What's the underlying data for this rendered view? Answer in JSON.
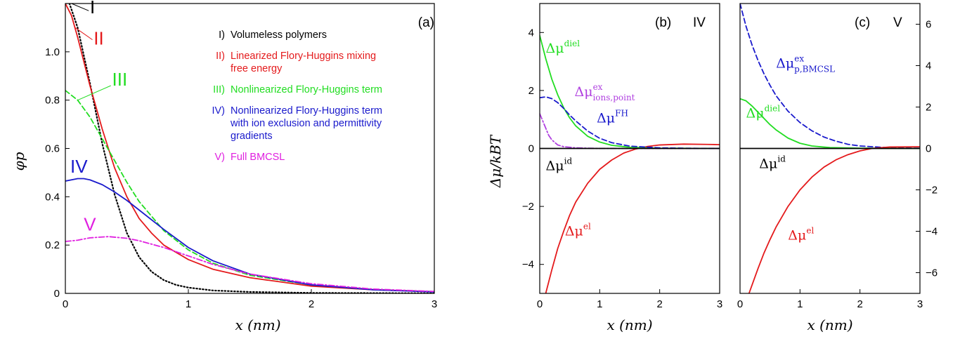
{
  "chart_data": [
    {
      "id": "a",
      "type": "line",
      "panel_label": "(a)",
      "xlabel": "x (nm)",
      "ylabel": "φp",
      "xlim": [
        0,
        3
      ],
      "ylim": [
        0,
        1.2
      ],
      "xticks": [
        "0",
        "1",
        "2",
        "3"
      ],
      "yticks": [
        "0",
        "0.2",
        "0.4",
        "0.6",
        "0.8",
        "1.0"
      ],
      "legend_placement": "top-right",
      "legend": [
        {
          "key": "I)",
          "text": [
            "Volumeless polymers"
          ],
          "color": "#000000"
        },
        {
          "key": "II)",
          "text": [
            "Linearized Flory-Huggins mixing",
            "free energy"
          ],
          "color": "#e41a1c"
        },
        {
          "key": "III)",
          "text": [
            "Nonlinearized Flory-Huggins term"
          ],
          "color": "#22dd22"
        },
        {
          "key": "IV)",
          "text": [
            "Nonlinearized Flory-Huggins term",
            "with ion exclusion and permittivity",
            "gradients"
          ],
          "color": "#1a1acc"
        },
        {
          "key": "V)",
          "text": [
            "Full BMCSL"
          ],
          "color": "#e020e0"
        }
      ],
      "series": [
        {
          "name": "I",
          "color": "#000000",
          "style": "dotted",
          "x": [
            0,
            0.1,
            0.2,
            0.3,
            0.4,
            0.5,
            0.6,
            0.7,
            0.8,
            0.9,
            1.0,
            1.2,
            1.5,
            2.0,
            3.0
          ],
          "y": [
            1.25,
            1.1,
            0.87,
            0.62,
            0.41,
            0.25,
            0.15,
            0.09,
            0.055,
            0.035,
            0.024,
            0.012,
            0.006,
            0.002,
            0.0005
          ]
        },
        {
          "name": "II",
          "color": "#e41a1c",
          "style": "solid",
          "x": [
            0,
            0.05,
            0.1,
            0.2,
            0.3,
            0.4,
            0.5,
            0.6,
            0.7,
            0.8,
            1.0,
            1.2,
            1.5,
            2.0,
            2.5,
            3.0
          ],
          "y": [
            1.2,
            1.15,
            1.06,
            0.86,
            0.68,
            0.52,
            0.4,
            0.31,
            0.25,
            0.2,
            0.14,
            0.1,
            0.065,
            0.03,
            0.015,
            0.007
          ]
        },
        {
          "name": "III",
          "color": "#22dd22",
          "style": "dashed",
          "x": [
            0,
            0.1,
            0.2,
            0.3,
            0.4,
            0.5,
            0.6,
            0.8,
            1.0,
            1.2,
            1.5,
            2.0,
            2.5,
            3.0
          ],
          "y": [
            0.84,
            0.8,
            0.73,
            0.64,
            0.55,
            0.46,
            0.38,
            0.26,
            0.18,
            0.125,
            0.075,
            0.035,
            0.016,
            0.007
          ]
        },
        {
          "name": "IV",
          "color": "#1a1acc",
          "style": "solid",
          "x": [
            0,
            0.1,
            0.15,
            0.2,
            0.3,
            0.4,
            0.5,
            0.6,
            0.8,
            1.0,
            1.2,
            1.5,
            2.0,
            2.5,
            3.0
          ],
          "y": [
            0.465,
            0.475,
            0.475,
            0.47,
            0.45,
            0.42,
            0.385,
            0.345,
            0.265,
            0.19,
            0.135,
            0.08,
            0.035,
            0.015,
            0.006
          ]
        },
        {
          "name": "V",
          "color": "#e020e0",
          "style": "dashdot",
          "x": [
            0,
            0.1,
            0.2,
            0.35,
            0.5,
            0.6,
            0.8,
            1.0,
            1.2,
            1.5,
            2.0,
            2.5,
            3.0
          ],
          "y": [
            0.215,
            0.22,
            0.23,
            0.235,
            0.228,
            0.218,
            0.19,
            0.155,
            0.12,
            0.08,
            0.04,
            0.018,
            0.008
          ]
        }
      ],
      "curve_labels": [
        {
          "text": "I",
          "color": "#000000",
          "x": 0.2,
          "y": 1.16
        },
        {
          "text": "II",
          "color": "#e41a1c",
          "x": 0.23,
          "y": 1.03
        },
        {
          "text": "III",
          "color": "#22dd22",
          "x": 0.38,
          "y": 0.86
        },
        {
          "text": "IV",
          "color": "#1a1acc",
          "x": 0.04,
          "y": 0.5
        },
        {
          "text": "V",
          "color": "#e020e0",
          "x": 0.15,
          "y": 0.26
        }
      ]
    },
    {
      "id": "b",
      "type": "line",
      "panel_label": "(b)",
      "case_label": "IV",
      "xlabel": "x (nm)",
      "ylabel": "Δμ/kBT",
      "xlim": [
        0,
        3
      ],
      "ylim": [
        -5,
        5
      ],
      "xticks": [
        "0",
        "1",
        "2",
        "3"
      ],
      "yticks": [
        "−4",
        "−2",
        "0",
        "2",
        "4"
      ],
      "series": [
        {
          "name": "Δμel",
          "color": "#e41a1c",
          "style": "solid",
          "x": [
            0.1,
            0.15,
            0.2,
            0.3,
            0.4,
            0.5,
            0.6,
            0.8,
            1.0,
            1.2,
            1.4,
            1.6,
            1.8,
            2.0,
            2.4,
            2.8,
            3.0
          ],
          "y": [
            -5,
            -4.6,
            -4.2,
            -3.45,
            -2.85,
            -2.3,
            -1.85,
            -1.2,
            -0.72,
            -0.4,
            -0.16,
            -0.02,
            0.07,
            0.12,
            0.15,
            0.14,
            0.13
          ]
        },
        {
          "name": "Δμdiel",
          "color": "#22dd22",
          "style": "solid",
          "x": [
            0,
            0.1,
            0.2,
            0.3,
            0.4,
            0.5,
            0.6,
            0.8,
            1.0,
            1.2,
            1.5,
            2.0,
            3.0
          ],
          "y": [
            3.9,
            3.1,
            2.4,
            1.85,
            1.4,
            1.05,
            0.78,
            0.42,
            0.22,
            0.11,
            0.04,
            0.01,
            0
          ]
        },
        {
          "name": "Δμions,pointex",
          "color": "#b040e0",
          "style": "dashdot",
          "x": [
            0,
            0.05,
            0.1,
            0.15,
            0.2,
            0.3,
            0.4,
            0.6,
            0.8,
            1.0,
            1.5,
            2.0,
            3.0
          ],
          "y": [
            1.2,
            0.95,
            0.7,
            0.45,
            0.3,
            0.12,
            0.06,
            0.02,
            0.01,
            0,
            0,
            0,
            0
          ]
        },
        {
          "name": "ΔμFH",
          "color": "#1a1acc",
          "style": "dashed",
          "x": [
            0,
            0.1,
            0.2,
            0.3,
            0.4,
            0.5,
            0.6,
            0.8,
            1.0,
            1.2,
            1.5,
            2.0,
            2.5,
            3.0
          ],
          "y": [
            1.75,
            1.78,
            1.72,
            1.58,
            1.38,
            1.15,
            0.95,
            0.6,
            0.35,
            0.2,
            0.08,
            0.02,
            0.005,
            0
          ]
        },
        {
          "name": "Δμid",
          "color": "#000000",
          "style": "solid",
          "x": [
            0,
            3
          ],
          "y": [
            0,
            0
          ]
        }
      ],
      "curve_labels": [
        {
          "main": "Δμ",
          "sup": "diel",
          "sub": "",
          "color": "#22dd22",
          "x": 0.1,
          "y": 3.3
        },
        {
          "main": "Δμ",
          "sup": "ex",
          "sub": "ions,point",
          "color": "#b040e0",
          "x": 0.58,
          "y": 1.8
        },
        {
          "main": "Δμ",
          "sup": "FH",
          "sub": "",
          "color": "#1a1acc",
          "x": 0.95,
          "y": 0.9
        },
        {
          "main": "Δμ",
          "sup": "id",
          "sub": "",
          "color": "#000000",
          "x": 0.1,
          "y": -0.75
        },
        {
          "main": "Δμ",
          "sup": "el",
          "sub": "",
          "color": "#e41a1c",
          "x": 0.42,
          "y": -3.0
        }
      ]
    },
    {
      "id": "c",
      "type": "line",
      "panel_label": "(c)",
      "case_label": "V",
      "xlabel": "x (nm)",
      "xlim": [
        0,
        3
      ],
      "ylim": [
        -7,
        7
      ],
      "xticks": [
        "0",
        "1",
        "2",
        "3"
      ],
      "yticks": [
        "−6",
        "−4",
        "−2",
        "0",
        "2",
        "4",
        "6"
      ],
      "series": [
        {
          "name": "Δμp,BMCSLex",
          "color": "#1a1acc",
          "style": "dashed",
          "x": [
            0,
            0.1,
            0.2,
            0.3,
            0.4,
            0.5,
            0.6,
            0.8,
            1.0,
            1.2,
            1.4,
            1.6,
            1.8,
            2.0,
            2.5,
            3.0
          ],
          "y": [
            7.0,
            5.9,
            5.0,
            4.25,
            3.6,
            3.05,
            2.55,
            1.8,
            1.25,
            0.85,
            0.55,
            0.35,
            0.2,
            0.12,
            0.03,
            0.01
          ]
        },
        {
          "name": "Δμdiel",
          "color": "#22dd22",
          "style": "solid",
          "x": [
            0,
            0.1,
            0.2,
            0.3,
            0.4,
            0.5,
            0.6,
            0.8,
            1.0,
            1.2,
            1.5,
            2.0,
            3.0
          ],
          "y": [
            2.4,
            2.3,
            2.05,
            1.75,
            1.45,
            1.15,
            0.9,
            0.5,
            0.25,
            0.12,
            0.04,
            0.01,
            0
          ]
        },
        {
          "name": "Δμel",
          "color": "#e41a1c",
          "style": "solid",
          "x": [
            0.15,
            0.2,
            0.3,
            0.4,
            0.5,
            0.6,
            0.8,
            1.0,
            1.2,
            1.4,
            1.6,
            1.8,
            2.0,
            2.2,
            2.5,
            3.0
          ],
          "y": [
            -7,
            -6.6,
            -5.8,
            -5.05,
            -4.4,
            -3.8,
            -2.8,
            -2.0,
            -1.38,
            -0.9,
            -0.55,
            -0.3,
            -0.12,
            0,
            0.07,
            0.08
          ]
        },
        {
          "name": "Δμid",
          "color": "#000000",
          "style": "solid",
          "x": [
            0,
            3
          ],
          "y": [
            0,
            0
          ]
        }
      ],
      "curve_labels": [
        {
          "main": "Δμ",
          "sup": "ex",
          "sub": "p,BMCSL",
          "color": "#1a1acc",
          "x": 0.6,
          "y": 3.9
        },
        {
          "main": "Δμ",
          "sup": "diel",
          "sub": "",
          "color": "#22dd22",
          "x": 0.1,
          "y": 1.5
        },
        {
          "main": "Δμ",
          "sup": "id",
          "sub": "",
          "color": "#000000",
          "x": 0.32,
          "y": -0.95
        },
        {
          "main": "Δμ",
          "sup": "el",
          "sub": "",
          "color": "#e41a1c",
          "x": 0.8,
          "y": -4.4
        }
      ]
    }
  ]
}
